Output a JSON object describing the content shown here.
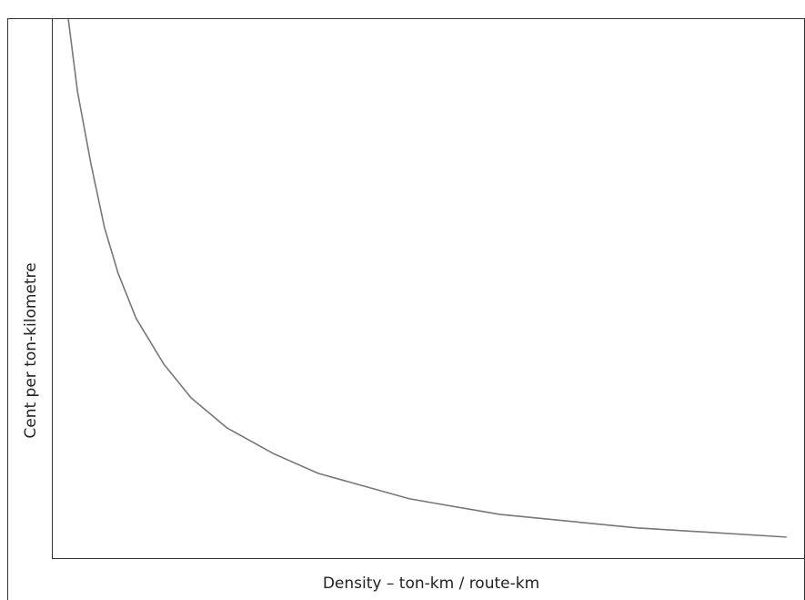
{
  "chart_data": {
    "type": "line",
    "x_label": "Density – ton-km / route-km",
    "y_label": "Cent per ton-kilometre",
    "x": [
      2.2,
      3.4,
      5.2,
      7.0,
      8.8,
      11.2,
      14.9,
      18.5,
      23.3,
      29.4,
      35.4,
      47.5,
      59.5,
      77.8,
      97.6
    ],
    "values": [
      99.7,
      86.5,
      73.0,
      61.2,
      52.8,
      44.4,
      35.9,
      29.7,
      24.1,
      19.4,
      15.7,
      11.0,
      8.1,
      5.6,
      3.9
    ],
    "color": "#777777",
    "xlim": [
      0,
      100
    ],
    "ylim": [
      0,
      100
    ]
  }
}
